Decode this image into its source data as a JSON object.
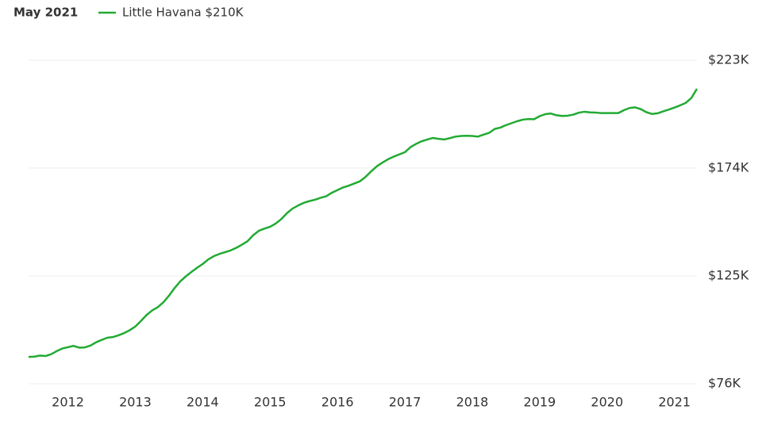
{
  "chart_data": {
    "type": "line",
    "hover_date": "May 2021",
    "x": [
      "2011-06",
      "2011-07",
      "2011-08",
      "2011-09",
      "2011-10",
      "2011-11",
      "2011-12",
      "2012-01",
      "2012-02",
      "2012-03",
      "2012-04",
      "2012-05",
      "2012-06",
      "2012-07",
      "2012-08",
      "2012-09",
      "2012-10",
      "2012-11",
      "2012-12",
      "2013-01",
      "2013-02",
      "2013-03",
      "2013-04",
      "2013-05",
      "2013-06",
      "2013-07",
      "2013-08",
      "2013-09",
      "2013-10",
      "2013-11",
      "2013-12",
      "2014-01",
      "2014-02",
      "2014-03",
      "2014-04",
      "2014-05",
      "2014-06",
      "2014-07",
      "2014-08",
      "2014-09",
      "2014-10",
      "2014-11",
      "2014-12",
      "2015-01",
      "2015-02",
      "2015-03",
      "2015-04",
      "2015-05",
      "2015-06",
      "2015-07",
      "2015-08",
      "2015-09",
      "2015-10",
      "2015-11",
      "2015-12",
      "2016-01",
      "2016-02",
      "2016-03",
      "2016-04",
      "2016-05",
      "2016-06",
      "2016-07",
      "2016-08",
      "2016-09",
      "2016-10",
      "2016-11",
      "2016-12",
      "2017-01",
      "2017-02",
      "2017-03",
      "2017-04",
      "2017-05",
      "2017-06",
      "2017-07",
      "2017-08",
      "2017-09",
      "2017-10",
      "2017-11",
      "2017-12",
      "2018-01",
      "2018-02",
      "2018-03",
      "2018-04",
      "2018-05",
      "2018-06",
      "2018-07",
      "2018-08",
      "2018-09",
      "2018-10",
      "2018-11",
      "2018-12",
      "2019-01",
      "2019-02",
      "2019-03",
      "2019-04",
      "2019-05",
      "2019-06",
      "2019-07",
      "2019-08",
      "2019-09",
      "2019-10",
      "2019-11",
      "2019-12",
      "2020-01",
      "2020-02",
      "2020-03",
      "2020-04",
      "2020-05",
      "2020-06",
      "2020-07",
      "2020-08",
      "2020-09",
      "2020-10",
      "2020-11",
      "2020-12",
      "2021-01",
      "2021-02",
      "2021-03",
      "2021-04",
      "2021-05"
    ],
    "series": [
      {
        "name": "Little Havana $210K",
        "color": "#22aa33",
        "values": [
          88.2,
          88.3,
          88.8,
          88.6,
          89.4,
          90.8,
          92.0,
          92.6,
          93.2,
          92.4,
          92.5,
          93.3,
          94.8,
          95.9,
          96.9,
          97.2,
          98.0,
          99.0,
          100.3,
          102.0,
          104.5,
          107.2,
          109.3,
          110.8,
          113.0,
          116.0,
          119.5,
          122.5,
          124.8,
          126.8,
          128.7,
          130.4,
          132.5,
          134.0,
          135.0,
          135.8,
          136.6,
          137.8,
          139.2,
          140.8,
          143.5,
          145.5,
          146.5,
          147.3,
          148.8,
          150.8,
          153.5,
          155.6,
          157.0,
          158.2,
          159.0,
          159.6,
          160.5,
          161.2,
          162.8,
          164.0,
          165.2,
          166.0,
          167.0,
          168.0,
          170.0,
          172.5,
          174.8,
          176.5,
          178.0,
          179.2,
          180.2,
          181.2,
          183.5,
          185.0,
          186.2,
          187.0,
          187.7,
          187.3,
          187.0,
          187.6,
          188.3,
          188.6,
          188.7,
          188.6,
          188.3,
          189.2,
          190.0,
          191.8,
          192.4,
          193.5,
          194.4,
          195.3,
          196.0,
          196.3,
          196.2,
          197.6,
          198.5,
          198.8,
          198.0,
          197.7,
          197.8,
          198.3,
          199.2,
          199.6,
          199.3,
          199.2,
          199.0,
          199.0,
          199.0,
          199.0,
          200.3,
          201.3,
          201.6,
          200.8,
          199.4,
          198.6,
          198.9,
          199.8,
          200.6,
          201.5,
          202.5,
          203.6,
          205.8,
          210
        ]
      }
    ],
    "xlim": [
      "2011-06",
      "2021-05"
    ],
    "xticks": [
      "2012",
      "2013",
      "2014",
      "2015",
      "2016",
      "2017",
      "2018",
      "2019",
      "2020",
      "2021"
    ],
    "ylim": [
      76,
      223
    ],
    "yticks": [
      {
        "value": 76,
        "label": "$76K"
      },
      {
        "value": 125,
        "label": "$125K"
      },
      {
        "value": 174,
        "label": "$174K"
      },
      {
        "value": 223,
        "label": "$223K"
      }
    ],
    "grid": true
  }
}
